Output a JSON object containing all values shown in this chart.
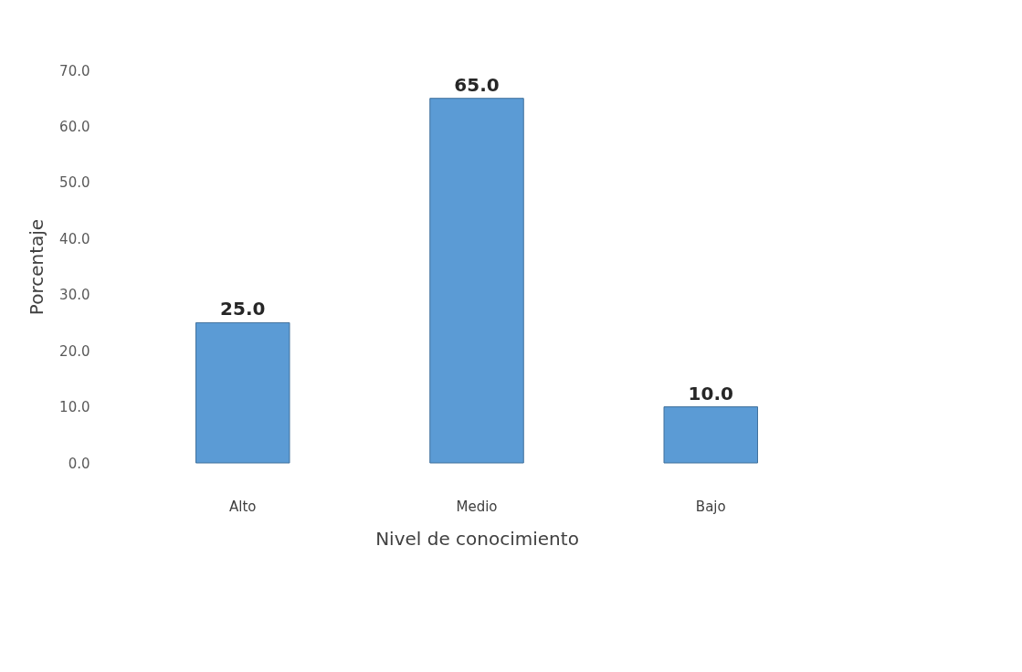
{
  "chart_data": {
    "type": "bar",
    "xlabel": "Nivel de conocimiento",
    "ylabel": "Porcentaje",
    "categories": [
      "Alto",
      "Medio",
      "Bajo"
    ],
    "values": [
      25.0,
      65.0,
      10.0
    ],
    "value_labels": [
      "25.0",
      "65.0",
      "10.0"
    ],
    "color": "#5b9bd5",
    "ylim": [
      0,
      70
    ],
    "yticks": [
      {
        "value": 0,
        "label": "0.0"
      },
      {
        "value": 10,
        "label": "10.0"
      },
      {
        "value": 20,
        "label": "20.0"
      },
      {
        "value": 30,
        "label": "30.0"
      },
      {
        "value": 40,
        "label": "40.0"
      },
      {
        "value": 50,
        "label": "50.0"
      },
      {
        "value": 60,
        "label": "60.0"
      },
      {
        "value": 70,
        "label": "70.0"
      }
    ],
    "grid": false
  }
}
